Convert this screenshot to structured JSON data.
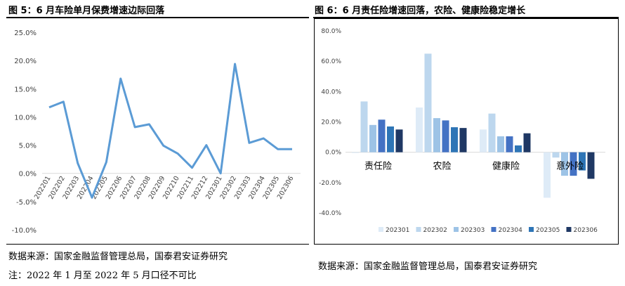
{
  "left": {
    "title": "图 5：6 月车险单月保费增速边际回落",
    "source": "数据来源：国家金融监督管理总局，国泰君安证券研究",
    "note": "注：2022 年 1 月至 2022 年 5 月口径不可比"
  },
  "right": {
    "title": "图 6：6 月责任险增速回落，农险、健康险稳定增长",
    "source": "数据来源：国家金融监督管理总局，国泰君安证券研究"
  },
  "colors": {
    "line": "#5b9bd5",
    "s202301": "#deebf7",
    "s202302": "#bdd7ee",
    "s202303": "#9dc3e6",
    "s202304": "#4472c4",
    "s202305": "#2e75b6",
    "s202306": "#1f3864"
  },
  "chart_data": [
    {
      "type": "line",
      "title": "",
      "xlabel": "",
      "ylabel": "",
      "categories": [
        "202201",
        "202202",
        "202203",
        "202204",
        "202205",
        "202206",
        "202207",
        "202208",
        "202209",
        "202210",
        "202211",
        "202212",
        "202301",
        "202302",
        "202303",
        "202304",
        "202305",
        "202306"
      ],
      "series": [
        {
          "values": [
            11.7,
            12.7,
            1.8,
            -4.3,
            2.0,
            16.8,
            8.2,
            8.7,
            4.9,
            3.5,
            1.0,
            5.0,
            0.0,
            19.4,
            5.4,
            6.2,
            4.3,
            4.3
          ]
        }
      ],
      "ylim": [
        -10,
        25
      ],
      "yticks": [
        "-10.0%",
        "-5.0%",
        "0.0%",
        "5.0%",
        "10.0%",
        "15.0%",
        "20.0%",
        "25.0%"
      ],
      "grid": false,
      "legend": "none"
    },
    {
      "type": "bar",
      "title": "",
      "xlabel": "",
      "ylabel": "",
      "categories": [
        "责任险",
        "农险",
        "健康险",
        "意外险"
      ],
      "series": [
        {
          "name": "202301",
          "values": [
            -0.5,
            29.5,
            15.0,
            -30.0
          ]
        },
        {
          "name": "202302",
          "values": [
            33.5,
            65.0,
            25.5,
            -3.5
          ]
        },
        {
          "name": "202303",
          "values": [
            18.0,
            22.5,
            10.5,
            -15.5
          ]
        },
        {
          "name": "202304",
          "values": [
            21.5,
            21.0,
            10.5,
            -15.5
          ]
        },
        {
          "name": "202305",
          "values": [
            17.0,
            16.5,
            4.5,
            -12.0
          ]
        },
        {
          "name": "202306",
          "values": [
            15.0,
            16.0,
            12.5,
            -17.5
          ]
        }
      ],
      "ylim": [
        -40,
        80
      ],
      "yticks": [
        "-40.0%",
        "-20.0%",
        "0.0%",
        "20.0%",
        "40.0%",
        "60.0%",
        "80.0%"
      ],
      "grid": false,
      "legend": "bottom"
    }
  ]
}
